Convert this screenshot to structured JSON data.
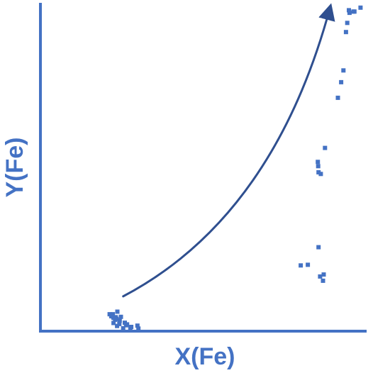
{
  "chart_data": {
    "type": "scatter",
    "title": "",
    "xlabel": "X(Fe)",
    "ylabel": "Y(Fe)",
    "xlim": [
      0,
      1
    ],
    "ylim": [
      0,
      1
    ],
    "grid": false,
    "legend": "none",
    "tick_labels": "none",
    "colors": {
      "axis": "#4472c4",
      "points": "#4472c4",
      "arrow": "#2f4f8f"
    },
    "series": [
      {
        "points": [
          [
            0.214,
            0.052
          ],
          [
            0.224,
            0.045
          ],
          [
            0.224,
            0.052
          ],
          [
            0.219,
            0.046
          ],
          [
            0.233,
            0.043
          ],
          [
            0.235,
            0.038
          ],
          [
            0.226,
            0.041
          ],
          [
            0.231,
            0.035
          ],
          [
            0.245,
            0.034
          ],
          [
            0.245,
            0.031
          ],
          [
            0.238,
            0.06
          ],
          [
            0.244,
            0.022
          ],
          [
            0.261,
            0.026
          ],
          [
            0.265,
            0.018
          ],
          [
            0.278,
            0.011
          ],
          [
            0.303,
            0.008
          ],
          [
            0.3,
            0.017
          ],
          [
            0.256,
            0.009
          ],
          [
            0.237,
            0.016
          ],
          [
            0.226,
            0.025
          ],
          [
            0.249,
            0.044
          ],
          [
            0.268,
            0.021
          ],
          [
            0.281,
            0.013
          ],
          [
            0.805,
            0.202
          ],
          [
            0.827,
            0.204
          ],
          [
            0.86,
            0.258
          ],
          [
            0.865,
            0.168
          ],
          [
            0.874,
            0.155
          ],
          [
            0.876,
            0.174
          ],
          [
            0.858,
            0.52
          ],
          [
            0.859,
            0.507
          ],
          [
            0.86,
            0.488
          ],
          [
            0.867,
            0.483
          ],
          [
            0.88,
            0.563
          ],
          [
            0.92,
            0.717
          ],
          [
            0.93,
            0.765
          ],
          [
            0.937,
            0.801
          ],
          [
            0.945,
            0.919
          ],
          [
            0.949,
            0.947
          ],
          [
            0.954,
            0.986
          ],
          [
            0.956,
            0.978
          ],
          [
            0.968,
            0.982
          ],
          [
            0.971,
            0.982
          ],
          [
            0.99,
            0.994
          ]
        ]
      }
    ],
    "annotations": [
      {
        "type": "arrow",
        "from": [
          0.256,
          0.107
        ],
        "control": [
          0.72,
          0.35
        ],
        "to": [
          0.896,
          0.995
        ]
      }
    ]
  }
}
